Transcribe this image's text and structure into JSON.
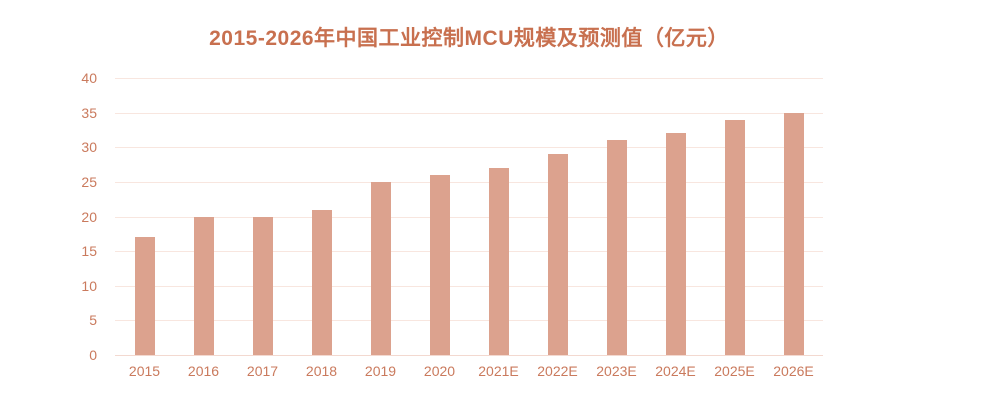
{
  "chart_data": {
    "type": "bar",
    "title": "2015-2026年中国工业控制MCU规模及预测值（亿元）",
    "categories": [
      "2015",
      "2016",
      "2017",
      "2018",
      "2019",
      "2020",
      "2021E",
      "2022E",
      "2023E",
      "2024E",
      "2025E",
      "2026E"
    ],
    "values": [
      17,
      20,
      20,
      21,
      25,
      26,
      27,
      29,
      31,
      32,
      34,
      35
    ],
    "xlabel": "",
    "ylabel": "",
    "ylim": [
      0,
      40
    ],
    "ytick_step": 5,
    "yticks": [
      0,
      5,
      10,
      15,
      20,
      25,
      30,
      35,
      40
    ],
    "grid": true,
    "legend": "none",
    "colors": {
      "bar": "#DCA28E",
      "title": "#C8704F",
      "axis_label": "#CA7A5D",
      "gridline": "#F8E6DF",
      "baseline": "#F3D9D0",
      "background": "#FFFFFF"
    }
  }
}
